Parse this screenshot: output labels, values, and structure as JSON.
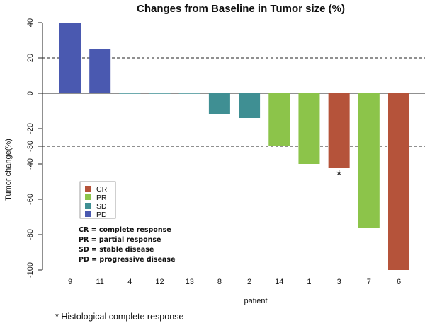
{
  "chart_data": {
    "type": "bar",
    "title": "Changes from Baseline in Tumor size (%)",
    "xlabel": "patient",
    "ylabel": "Tumor change(%)",
    "ylim": [
      -100,
      40
    ],
    "yticks": [
      40,
      20,
      0,
      -20,
      -30,
      -40,
      -60,
      -80,
      -100
    ],
    "reference_lines": [
      20,
      -30
    ],
    "categories": [
      "9",
      "11",
      "4",
      "12",
      "13",
      "8",
      "2",
      "14",
      "1",
      "3",
      "7",
      "6"
    ],
    "values": [
      40,
      25,
      0.3,
      0.3,
      0.3,
      -12,
      -14,
      -30,
      -40,
      -42,
      -76,
      -100
    ],
    "responses": [
      "PD",
      "PD",
      "SD",
      "SD",
      "SD",
      "SD",
      "SD",
      "PR",
      "PR",
      "CR",
      "PR",
      "CR"
    ],
    "annotation": {
      "category": "3",
      "text": "*"
    },
    "colors": {
      "CR": "#b5533a",
      "PR": "#8cc44a",
      "SD": "#3f8f93",
      "PD": "#4a59b0"
    },
    "legend": {
      "position": "lower-left",
      "entries": [
        {
          "key": "CR",
          "label": "CR"
        },
        {
          "key": "PR",
          "label": "PR"
        },
        {
          "key": "SD",
          "label": "SD"
        },
        {
          "key": "PD",
          "label": "PD"
        }
      ]
    },
    "definitions": [
      "CR = complete response",
      "PR = partial response",
      "SD = stable disease",
      "PD = progressive disease"
    ],
    "grid": false
  },
  "footnote": "* Histological complete response"
}
